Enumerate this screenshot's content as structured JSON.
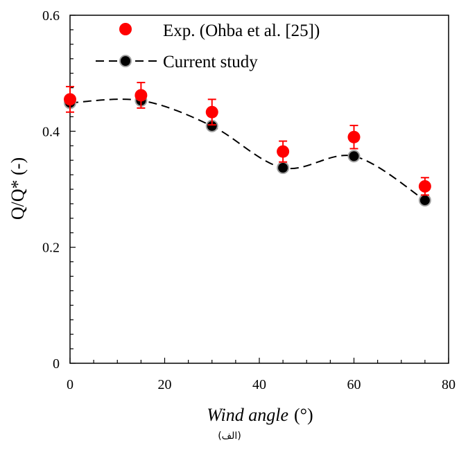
{
  "caption": "(الف)",
  "chart_data": {
    "type": "scatter",
    "xlabel": "Wind angle",
    "xlabel_unit": "(°)",
    "ylabel": "Q/Q* (-)",
    "xlim": [
      0,
      80
    ],
    "ylim": [
      0,
      0.6
    ],
    "xticks": [
      0,
      20,
      40,
      60,
      80
    ],
    "yticks": [
      0,
      0.2,
      0.4,
      0.6
    ],
    "ytick_labels": [
      "0",
      "0.2",
      "0.4",
      "0.6"
    ],
    "legend_position": "top-left",
    "series": [
      {
        "name": "Exp. (Ohba et al. [25])",
        "kind": "markers-with-errorbars",
        "color": "#ff0000",
        "x": [
          0,
          15,
          30,
          45,
          60,
          75
        ],
        "y": [
          0.455,
          0.462,
          0.433,
          0.365,
          0.39,
          0.305
        ],
        "error": [
          0.022,
          0.022,
          0.022,
          0.018,
          0.02,
          0.015
        ]
      },
      {
        "name": "Current study",
        "kind": "dashed-line-with-markers",
        "color": "#000000",
        "marker_edge": "#a0a0a0",
        "x": [
          0,
          15,
          30,
          45,
          60,
          75
        ],
        "y": [
          0.449,
          0.453,
          0.409,
          0.337,
          0.357,
          0.281
        ]
      }
    ]
  }
}
